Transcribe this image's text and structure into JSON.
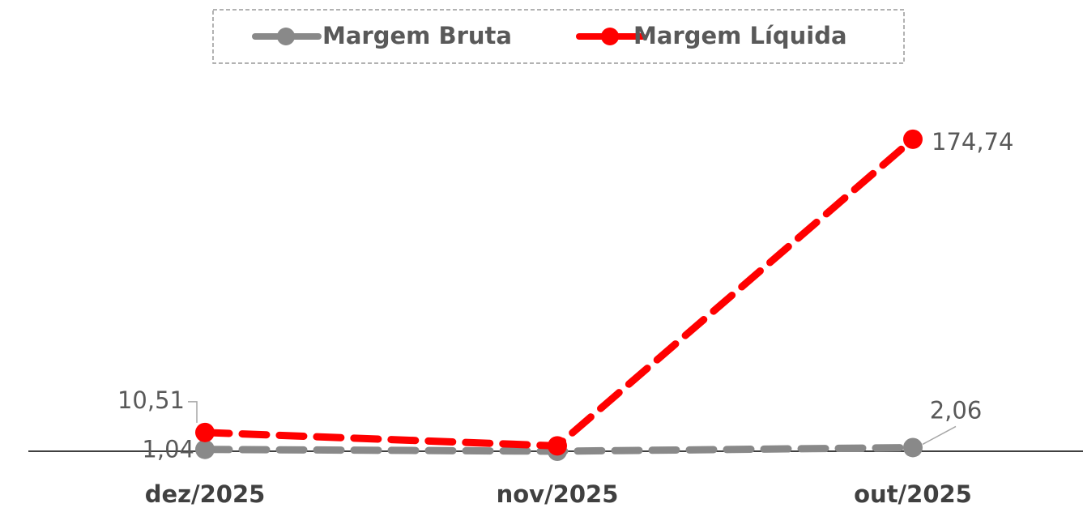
{
  "chart_data": {
    "type": "line",
    "categories": [
      "dez/2025",
      "nov/2025",
      "out/2025"
    ],
    "series": [
      {
        "name": "Margem Bruta",
        "color": "#898989",
        "values": [
          1.04,
          0,
          2.06
        ],
        "value_labels": [
          "1,04",
          null,
          "2,06"
        ]
      },
      {
        "name": "Margem Líquida",
        "color": "#ff0000",
        "values": [
          10.51,
          3,
          174.74
        ],
        "value_labels": [
          "10,51",
          null,
          "174,74"
        ]
      }
    ],
    "ylim": [
      0,
      180
    ],
    "legend": "top"
  }
}
